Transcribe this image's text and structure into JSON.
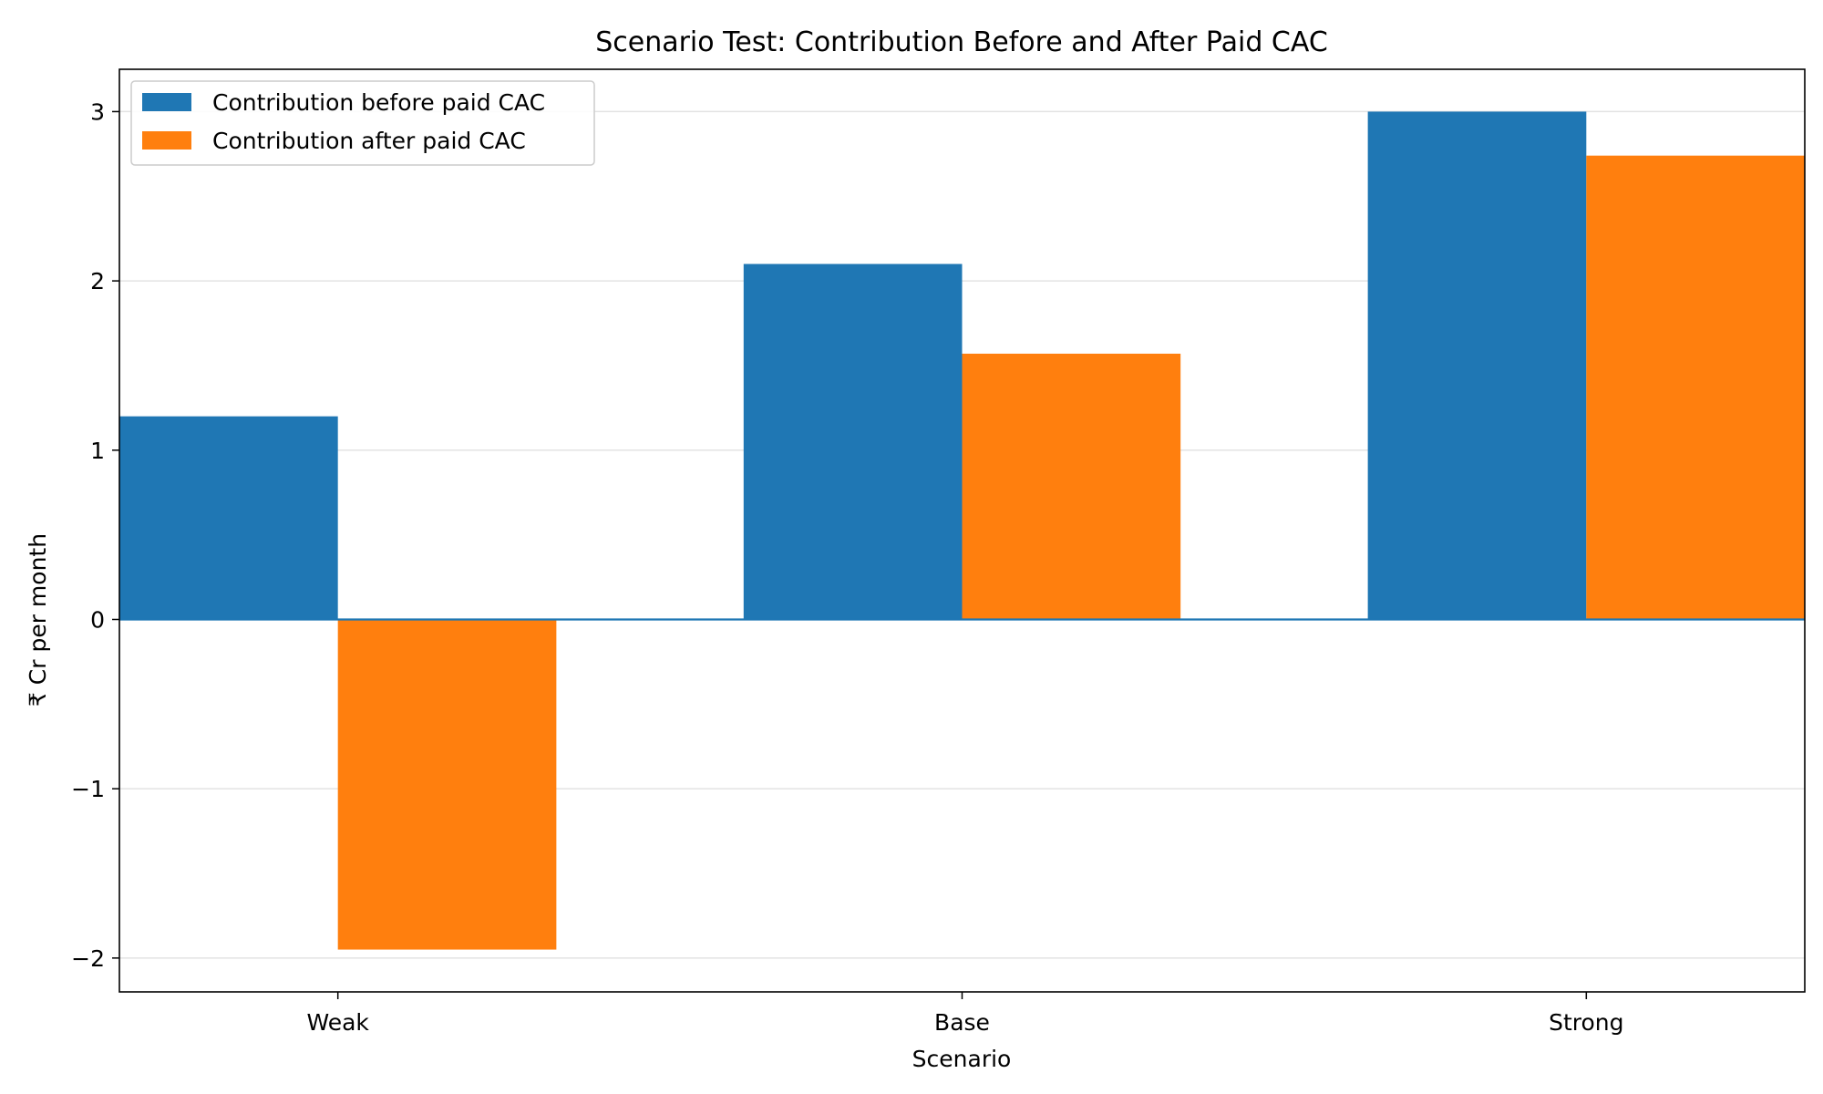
{
  "chart_data": {
    "type": "bar",
    "title": "Scenario Test: Contribution Before and After Paid CAC",
    "xlabel": "Scenario",
    "ylabel": "₹ Cr per month",
    "categories": [
      "Weak",
      "Base",
      "Strong"
    ],
    "series": [
      {
        "name": "Contribution before paid CAC",
        "color": "#1f77b4",
        "values": [
          1.2,
          2.1,
          3.0
        ]
      },
      {
        "name": "Contribution after paid CAC",
        "color": "#ff7f0e",
        "values": [
          -1.95,
          1.57,
          2.74
        ]
      }
    ],
    "ylim": [
      -2.2,
      3.25
    ],
    "yticks": [
      -2,
      -1,
      0,
      1,
      2,
      3
    ],
    "ytick_labels": [
      "−2",
      "−1",
      "0",
      "1",
      "2",
      "3"
    ],
    "grid": true,
    "legend": "upper-left",
    "zero_line_color": "#1f77b4"
  }
}
